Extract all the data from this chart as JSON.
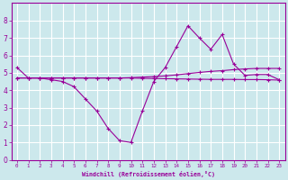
{
  "xlabel": "Windchill (Refroidissement éolien,°C)",
  "background_color": "#cce8ec",
  "grid_color": "#ffffff",
  "line_color": "#990099",
  "xlim": [
    -0.5,
    23.5
  ],
  "ylim": [
    0,
    9
  ],
  "xticks": [
    0,
    1,
    2,
    3,
    4,
    5,
    6,
    7,
    8,
    9,
    10,
    11,
    12,
    13,
    14,
    15,
    16,
    17,
    18,
    19,
    20,
    21,
    22,
    23
  ],
  "yticks": [
    0,
    1,
    2,
    3,
    4,
    5,
    6,
    7,
    8
  ],
  "line1_x": [
    0,
    1,
    2,
    3,
    4,
    5,
    6,
    7,
    8,
    9,
    10,
    11,
    12,
    13,
    14,
    15,
    16,
    17,
    18,
    19,
    20,
    21,
    22,
    23
  ],
  "line1_y": [
    5.3,
    4.7,
    4.7,
    4.6,
    4.5,
    4.2,
    3.5,
    2.8,
    1.8,
    1.1,
    1.0,
    2.8,
    4.5,
    5.3,
    6.5,
    7.7,
    7.0,
    6.35,
    7.2,
    5.5,
    4.85,
    4.9,
    4.9,
    4.6
  ],
  "line2_x": [
    0,
    1,
    2,
    3,
    4,
    5,
    6,
    7,
    8,
    9,
    10,
    11,
    12,
    13,
    14,
    15,
    16,
    17,
    18,
    19,
    20,
    21,
    22,
    23
  ],
  "line2_y": [
    4.7,
    4.7,
    4.7,
    4.7,
    4.7,
    4.7,
    4.7,
    4.7,
    4.7,
    4.7,
    4.72,
    4.75,
    4.78,
    4.82,
    4.88,
    4.95,
    5.02,
    5.08,
    5.12,
    5.18,
    5.22,
    5.25,
    5.25,
    5.25
  ],
  "line3_x": [
    0,
    1,
    2,
    3,
    4,
    5,
    6,
    7,
    8,
    9,
    10,
    11,
    12,
    13,
    14,
    15,
    16,
    17,
    18,
    19,
    20,
    21,
    22,
    23
  ],
  "line3_y": [
    4.7,
    4.7,
    4.7,
    4.7,
    4.7,
    4.7,
    4.7,
    4.7,
    4.7,
    4.7,
    4.7,
    4.68,
    4.67,
    4.66,
    4.65,
    4.64,
    4.63,
    4.62,
    4.62,
    4.62,
    4.61,
    4.61,
    4.6,
    4.58
  ]
}
